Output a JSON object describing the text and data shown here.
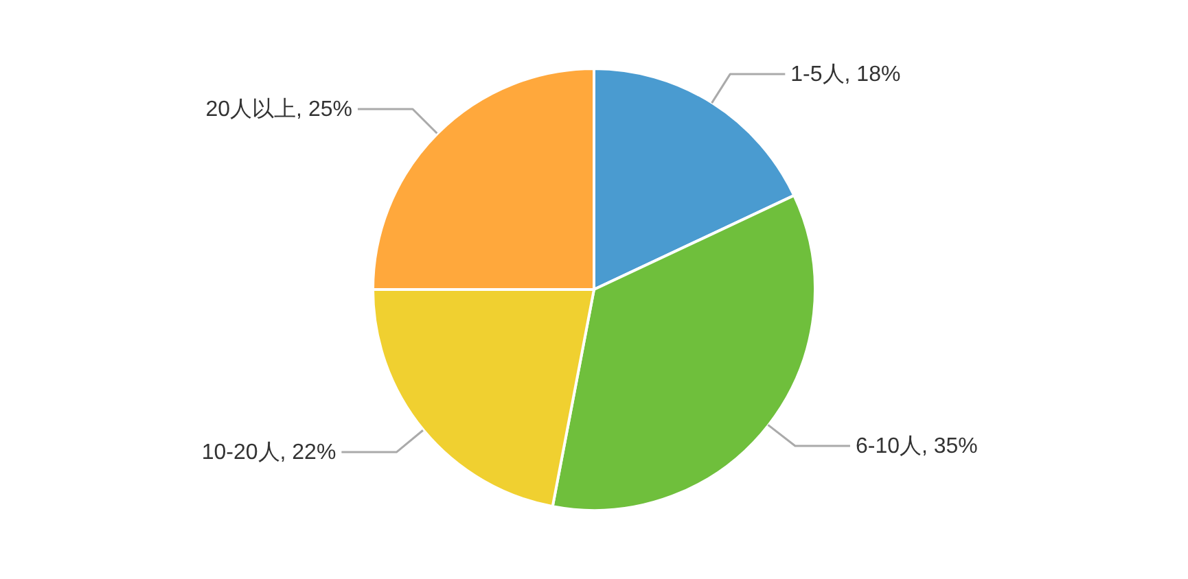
{
  "chart_data": {
    "type": "pie",
    "categories": [
      "1-5人",
      "6-10人",
      "10-20人",
      "20人以上"
    ],
    "values": [
      18,
      35,
      22,
      25
    ],
    "value_labels": [
      "18%",
      "35%",
      "22%",
      "25%"
    ],
    "colors": [
      "#4a9bd0",
      "#6fbf3c",
      "#f0d030",
      "#ffa83c"
    ]
  }
}
